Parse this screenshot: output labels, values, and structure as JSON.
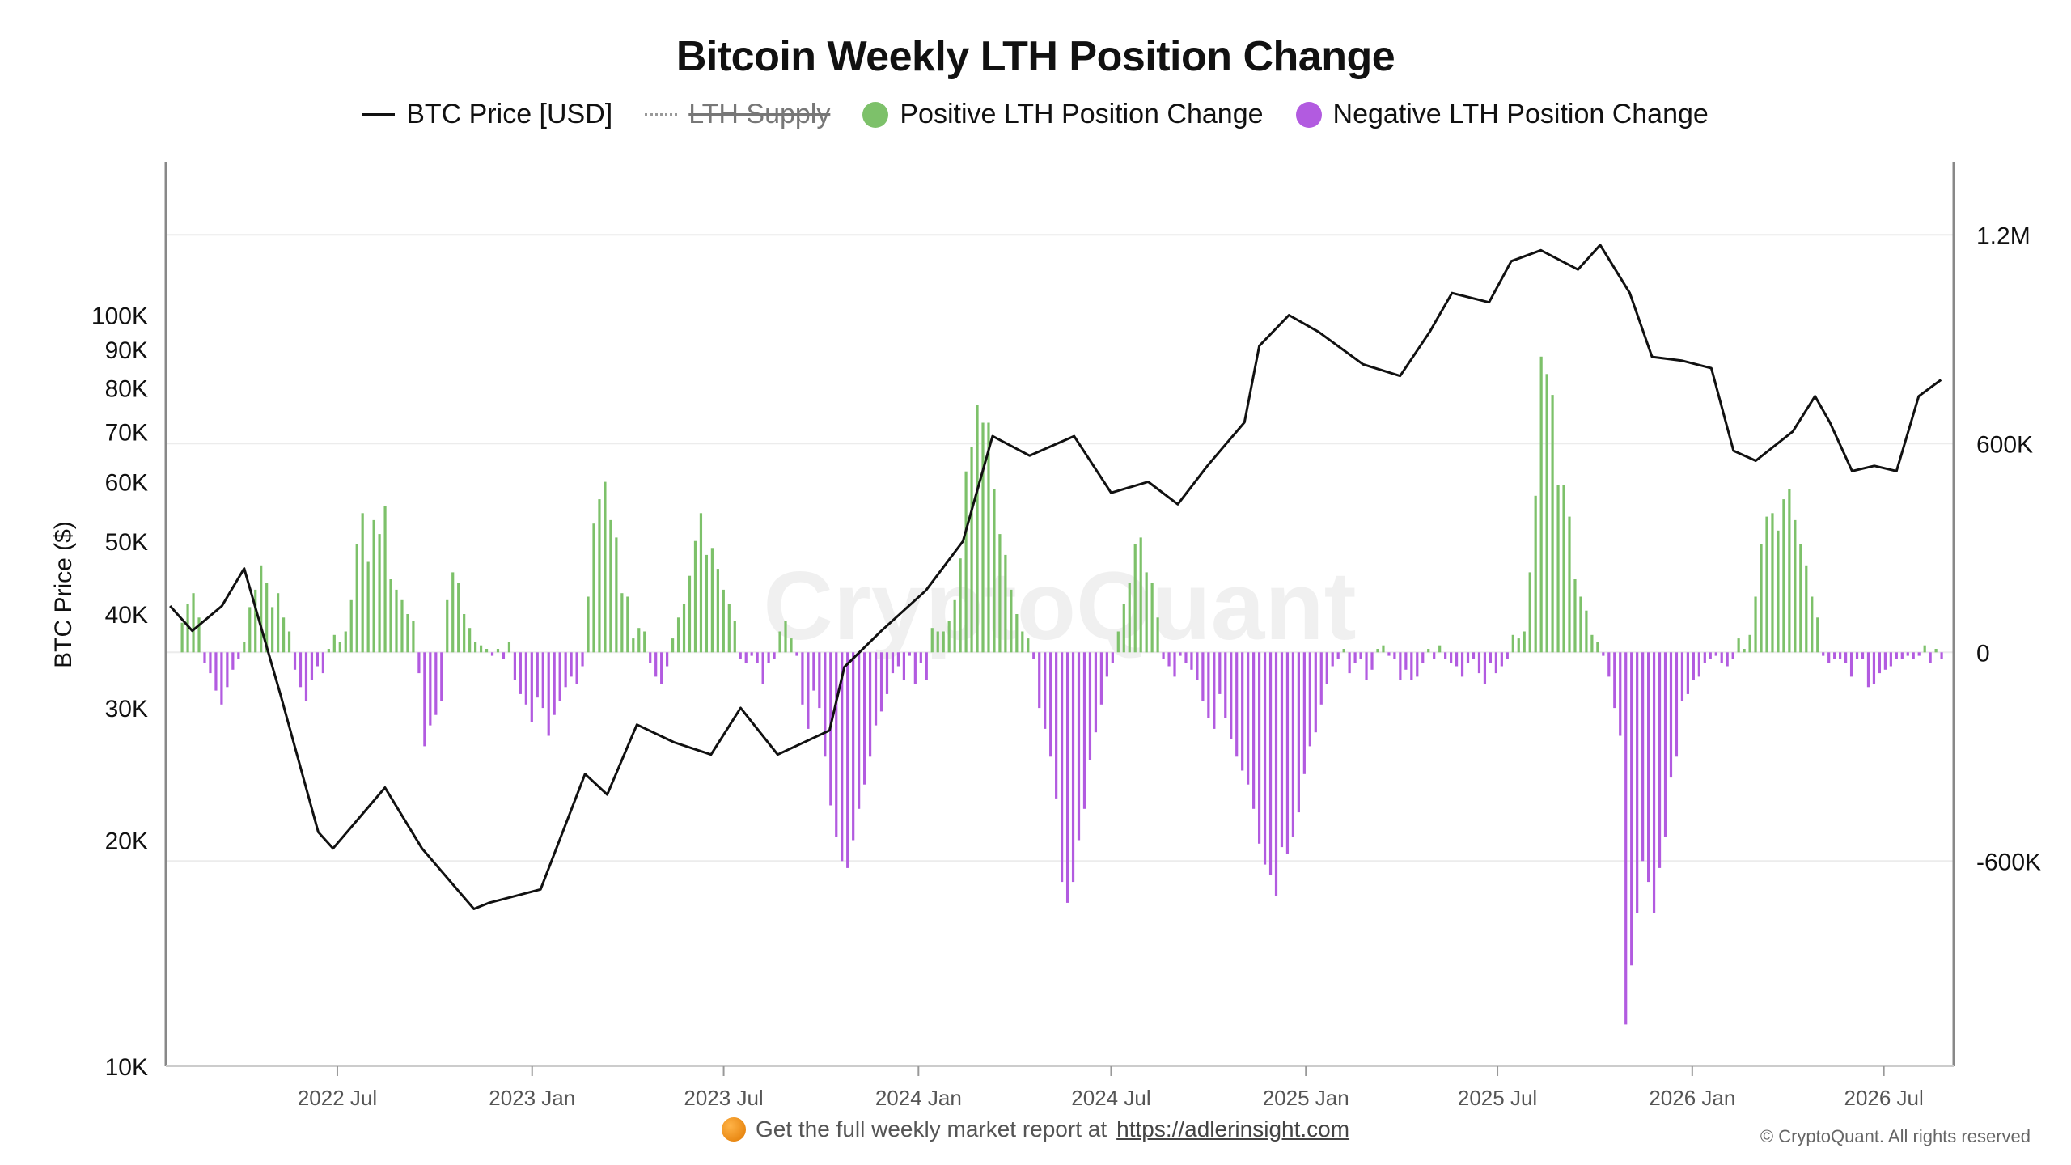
{
  "title": "Bitcoin Weekly LTH Position Change",
  "legend": [
    {
      "label": "BTC Price [USD]",
      "style": "line",
      "color": "#111111"
    },
    {
      "label": "LTH Supply",
      "style": "dotted-struck",
      "color": "#999999"
    },
    {
      "label": "Positive LTH Position Change",
      "style": "dot",
      "color": "#7dc16a"
    },
    {
      "label": "Negative LTH Position Change",
      "style": "dot",
      "color": "#b25be0"
    }
  ],
  "footer": {
    "text": "Get the full weekly market report at",
    "link": "https://adlerinsight.com"
  },
  "copyright": "© CryptoQuant. All rights reserved",
  "watermark": "CryptoQuant",
  "chart_data": {
    "type": "bar",
    "title": "Bitcoin Weekly LTH Position Change",
    "ylabel": "BTC Price ($)",
    "y_left_scale": "log",
    "y_left_ticks": [
      "10K",
      "20K",
      "30K",
      "40K",
      "50K",
      "60K",
      "70K",
      "80K",
      "90K",
      "100K"
    ],
    "y_left_values": [
      10000,
      20000,
      30000,
      40000,
      50000,
      60000,
      70000,
      80000,
      90000,
      100000
    ],
    "ylim_left": [
      10000,
      160000
    ],
    "y_right_ticks": [
      "-600K",
      "0",
      "600K",
      "1.2M"
    ],
    "y_right_values": [
      -600000,
      0,
      600000,
      1200000
    ],
    "ylim_right": [
      -1190000,
      1410000
    ],
    "x_ticks": [
      "2022 Jul",
      "2023 Jan",
      "2023 Jul",
      "2024 Jan",
      "2024 Jul",
      "2025 Jan",
      "2025 Jul",
      "2026 Jan",
      "2026 Jul"
    ],
    "x_tick_dates": [
      "2022-07-01",
      "2023-01-01",
      "2023-07-01",
      "2024-01-01",
      "2024-07-01",
      "2025-01-01",
      "2025-07-01",
      "2026-01-01",
      "2026-07-01"
    ],
    "x_range": [
      "2022-01-20",
      "2026-09-05"
    ],
    "grid": true,
    "legend_position": "top-center",
    "price_series": {
      "name": "BTC Price [USD]",
      "color": "#111111",
      "dates": [
        "2022-01-24",
        "2022-02-14",
        "2022-03-14",
        "2022-04-04",
        "2022-05-09",
        "2022-06-13",
        "2022-06-27",
        "2022-08-15",
        "2022-09-19",
        "2022-11-07",
        "2022-11-21",
        "2023-01-09",
        "2023-02-20",
        "2023-03-13",
        "2023-04-10",
        "2023-05-15",
        "2023-06-19",
        "2023-07-17",
        "2023-08-21",
        "2023-10-09",
        "2023-10-23",
        "2023-11-27",
        "2024-01-08",
        "2024-02-12",
        "2024-03-11",
        "2024-04-15",
        "2024-05-27",
        "2024-07-01",
        "2024-08-05",
        "2024-09-02",
        "2024-09-30",
        "2024-11-04",
        "2024-11-18",
        "2024-12-16",
        "2025-01-13",
        "2025-02-24",
        "2025-03-31",
        "2025-04-28",
        "2025-05-19",
        "2025-06-23",
        "2025-07-14",
        "2025-08-11",
        "2025-09-15",
        "2025-10-06",
        "2025-11-03",
        "2025-11-24",
        "2025-12-22",
        "2026-01-19",
        "2026-02-09",
        "2026-03-02",
        "2026-04-06",
        "2026-04-27",
        "2026-05-11",
        "2026-06-01",
        "2026-06-22",
        "2026-07-13",
        "2026-08-03",
        "2026-08-24"
      ],
      "values": [
        41000,
        38000,
        41000,
        46000,
        31000,
        20500,
        19500,
        23500,
        19500,
        16200,
        16500,
        17200,
        24500,
        23000,
        28500,
        27000,
        26000,
        30000,
        26000,
        28000,
        34000,
        38000,
        43000,
        50000,
        69000,
        65000,
        69000,
        58000,
        60000,
        56000,
        63000,
        72000,
        91000,
        100000,
        95000,
        86000,
        83000,
        95000,
        107000,
        104000,
        118000,
        122000,
        115000,
        124000,
        107000,
        88000,
        87000,
        85000,
        66000,
        64000,
        70000,
        78000,
        72000,
        62000,
        63000,
        62000,
        78000,
        82000
      ]
    },
    "lth_change_series": {
      "positive_color": "#7dc16a",
      "negative_color": "#b25be0",
      "weekly_values": [
        85000,
        140000,
        170000,
        100000,
        -30000,
        -60000,
        -110000,
        -150000,
        -100000,
        -50000,
        -20000,
        30000,
        130000,
        180000,
        250000,
        200000,
        130000,
        170000,
        100000,
        60000,
        -50000,
        -100000,
        -140000,
        -80000,
        -40000,
        -60000,
        10000,
        50000,
        30000,
        60000,
        150000,
        310000,
        400000,
        260000,
        380000,
        340000,
        420000,
        210000,
        180000,
        150000,
        110000,
        90000,
        -60000,
        -270000,
        -210000,
        -180000,
        -140000,
        150000,
        230000,
        200000,
        110000,
        70000,
        30000,
        20000,
        10000,
        -10000,
        10000,
        -20000,
        30000,
        -80000,
        -120000,
        -150000,
        -200000,
        -130000,
        -160000,
        -240000,
        -180000,
        -140000,
        -100000,
        -70000,
        -90000,
        -40000,
        160000,
        370000,
        440000,
        490000,
        380000,
        330000,
        170000,
        160000,
        40000,
        70000,
        60000,
        -30000,
        -70000,
        -90000,
        -40000,
        40000,
        100000,
        140000,
        220000,
        320000,
        400000,
        280000,
        300000,
        240000,
        180000,
        140000,
        90000,
        -20000,
        -30000,
        -10000,
        -30000,
        -90000,
        -30000,
        -20000,
        60000,
        90000,
        40000,
        -10000,
        -150000,
        -220000,
        -110000,
        -160000,
        -300000,
        -440000,
        -530000,
        -600000,
        -620000,
        -540000,
        -450000,
        -380000,
        -300000,
        -210000,
        -170000,
        -120000,
        -60000,
        -40000,
        -80000,
        -10000,
        -90000,
        -30000,
        -80000,
        70000,
        60000,
        60000,
        90000,
        150000,
        270000,
        520000,
        590000,
        710000,
        660000,
        660000,
        470000,
        340000,
        280000,
        180000,
        110000,
        60000,
        40000,
        -20000,
        -160000,
        -220000,
        -300000,
        -420000,
        -660000,
        -720000,
        -660000,
        -540000,
        -450000,
        -310000,
        -230000,
        -150000,
        -70000,
        -30000,
        60000,
        140000,
        200000,
        310000,
        330000,
        230000,
        200000,
        100000,
        -20000,
        -40000,
        -70000,
        -10000,
        -30000,
        -50000,
        -80000,
        -140000,
        -190000,
        -220000,
        -120000,
        -190000,
        -250000,
        -300000,
        -340000,
        -380000,
        -450000,
        -550000,
        -610000,
        -640000,
        -700000,
        -560000,
        -580000,
        -530000,
        -460000,
        -350000,
        -270000,
        -230000,
        -150000,
        -90000,
        -40000,
        -20000,
        10000,
        -60000,
        -30000,
        -20000,
        -80000,
        -50000,
        10000,
        20000,
        -10000,
        -20000,
        -80000,
        -50000,
        -80000,
        -70000,
        -30000,
        10000,
        -20000,
        20000,
        -20000,
        -30000,
        -40000,
        -70000,
        -30000,
        -20000,
        -60000,
        -90000,
        -30000,
        -60000,
        -40000,
        -20000,
        50000,
        40000,
        60000,
        230000,
        450000,
        850000,
        800000,
        740000,
        480000,
        480000,
        390000,
        210000,
        160000,
        120000,
        50000,
        30000,
        -10000,
        -70000,
        -160000,
        -240000,
        -1070000,
        -900000,
        -750000,
        -600000,
        -660000,
        -750000,
        -620000,
        -530000,
        -360000,
        -300000,
        -140000,
        -120000,
        -80000,
        -70000,
        -30000,
        -20000,
        -10000,
        -30000,
        -40000,
        -20000,
        40000,
        10000,
        50000,
        160000,
        310000,
        390000,
        400000,
        350000,
        440000,
        470000,
        380000,
        310000,
        250000,
        160000,
        100000,
        -10000,
        -30000,
        -20000,
        -20000,
        -30000,
        -70000,
        -20000,
        -20000,
        -100000,
        -90000,
        -60000,
        -50000,
        -40000,
        -20000,
        -20000,
        -10000,
        -20000,
        -10000,
        20000,
        -30000,
        10000,
        -20000
      ]
    }
  }
}
